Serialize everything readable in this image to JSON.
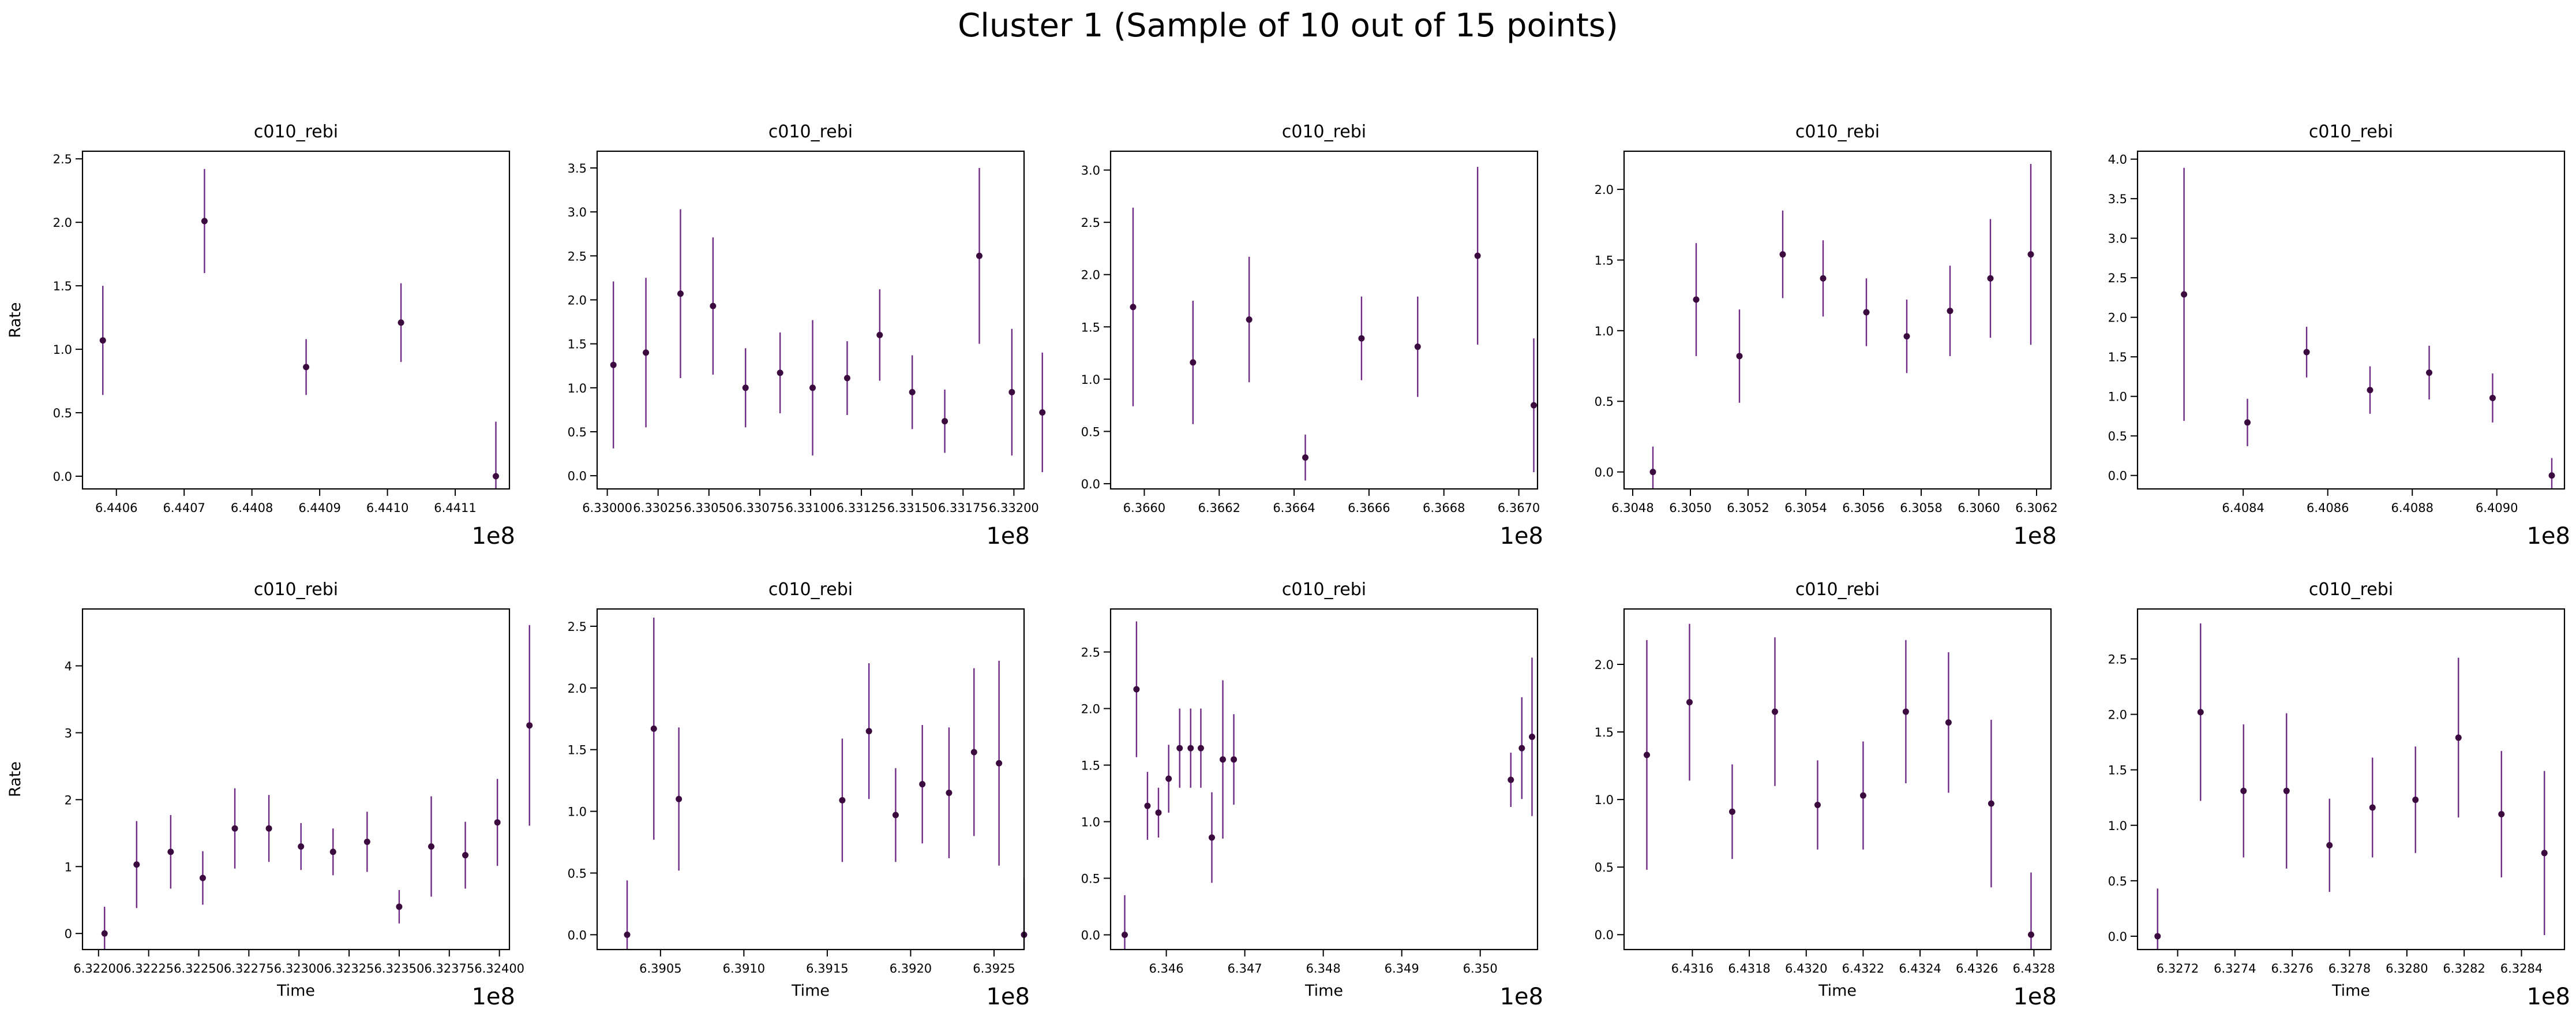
{
  "figure": {
    "title": "Cluster 1 (Sample of 10 out of 15 points)",
    "marker_color": "#3b0a3f",
    "errorbar_color": "#6f2a86"
  },
  "chart_data": [
    {
      "type": "scatter",
      "title": "c010_rebi",
      "xlabel": "",
      "ylabel": "Rate",
      "offset_label": "1e8",
      "xlim": [
        6.44055,
        6.44118
      ],
      "ylim": [
        -0.1,
        2.56
      ],
      "xticks": [
        6.4406,
        6.4407,
        6.4408,
        6.4409,
        6.441,
        6.4411
      ],
      "xtick_labels": [
        "6.4406",
        "6.4407",
        "6.4408",
        "6.4409",
        "6.4410",
        "6.4411"
      ],
      "yticks": [
        0,
        0.5,
        1,
        1.5,
        2,
        2.5
      ],
      "ytick_labels": [
        "0.0",
        "0.5",
        "1.0",
        "1.5",
        "2.0",
        "2.5"
      ],
      "x": [
        6.44058,
        6.44073,
        6.44088,
        6.44102,
        6.44116
      ],
      "y": [
        1.07,
        2.01,
        0.86,
        1.21,
        0.0
      ],
      "yerr": [
        0.43,
        0.41,
        0.22,
        0.31,
        0.43
      ]
    },
    {
      "type": "scatter",
      "title": "c010_rebi",
      "xlabel": "",
      "ylabel": "",
      "offset_label": "1e8",
      "xlim": [
        6.32995,
        6.33205
      ],
      "ylim": [
        -0.15,
        3.69
      ],
      "xticks": [
        6.33,
        6.33025,
        6.3305,
        6.33075,
        6.331,
        6.33125,
        6.3315,
        6.33175,
        6.332
      ],
      "xtick_labels": [
        "6.33000",
        "6.33025",
        "6.33050",
        "6.33075",
        "6.33100",
        "6.33125",
        "6.33150",
        "6.33175",
        "6.33200"
      ],
      "yticks": [
        0,
        0.5,
        1,
        1.5,
        2,
        2.5,
        3,
        3.5
      ],
      "ytick_labels": [
        "0.0",
        "0.5",
        "1.0",
        "1.5",
        "2.0",
        "2.5",
        "3.0",
        "3.5"
      ],
      "x": [
        6.33003,
        6.33019,
        6.33036,
        6.33052,
        6.33068,
        6.33085,
        6.33101,
        6.33118,
        6.33134,
        6.3315,
        6.33166,
        6.33183,
        6.33199,
        6.33214
      ],
      "y": [
        1.26,
        1.4,
        2.07,
        1.93,
        1.0,
        1.17,
        1.0,
        1.11,
        1.6,
        0.95,
        0.62,
        2.5,
        0.95,
        0.72
      ],
      "yerr": [
        0.95,
        0.85,
        0.96,
        0.78,
        0.45,
        0.46,
        0.77,
        0.42,
        0.52,
        0.42,
        0.36,
        1.0,
        0.72,
        0.68
      ]
    },
    {
      "type": "scatter",
      "title": "c010_rebi",
      "xlabel": "",
      "ylabel": "",
      "offset_label": "1e8",
      "xlim": [
        6.36591,
        6.36705
      ],
      "ylim": [
        -0.05,
        3.18
      ],
      "xticks": [
        6.366,
        6.3662,
        6.3664,
        6.3666,
        6.3668,
        6.367
      ],
      "xtick_labels": [
        "6.3660",
        "6.3662",
        "6.3664",
        "6.3666",
        "6.3668",
        "6.3670"
      ],
      "yticks": [
        0,
        0.5,
        1,
        1.5,
        2,
        2.5,
        3
      ],
      "ytick_labels": [
        "0.0",
        "0.5",
        "1.0",
        "1.5",
        "2.0",
        "2.5",
        "3.0"
      ],
      "x": [
        6.36597,
        6.36613,
        6.36628,
        6.36643,
        6.36658,
        6.36673,
        6.36689,
        6.36704
      ],
      "y": [
        1.69,
        1.16,
        1.57,
        0.25,
        1.39,
        1.31,
        2.18,
        0.75
      ],
      "yerr": [
        0.95,
        0.59,
        0.6,
        0.22,
        0.4,
        0.48,
        0.85,
        0.64
      ]
    },
    {
      "type": "scatter",
      "title": "c010_rebi",
      "xlabel": "",
      "ylabel": "",
      "offset_label": "1e8",
      "xlim": [
        6.30477,
        6.30625
      ],
      "ylim": [
        -0.12,
        2.27
      ],
      "xticks": [
        6.3048,
        6.305,
        6.3052,
        6.3054,
        6.3056,
        6.3058,
        6.306,
        6.3062
      ],
      "xtick_labels": [
        "6.3048",
        "6.3050",
        "6.3052",
        "6.3054",
        "6.3056",
        "6.3058",
        "6.3060",
        "6.3062"
      ],
      "yticks": [
        0,
        0.5,
        1,
        1.5,
        2
      ],
      "ytick_labels": [
        "0.0",
        "0.5",
        "1.0",
        "1.5",
        "2.0"
      ],
      "x": [
        6.30487,
        6.30502,
        6.30517,
        6.30532,
        6.30546,
        6.30561,
        6.30575,
        6.3059,
        6.30604,
        6.30618
      ],
      "y": [
        0.0,
        1.22,
        0.82,
        1.54,
        1.37,
        1.13,
        0.96,
        1.14,
        1.37,
        1.54
      ],
      "yerr": [
        0.18,
        0.4,
        0.33,
        0.31,
        0.27,
        0.24,
        0.26,
        0.32,
        0.42,
        0.64
      ]
    },
    {
      "type": "scatter",
      "title": "c010_rebi",
      "xlabel": "",
      "ylabel": "",
      "offset_label": "1e8",
      "xlim": [
        6.40815,
        6.40916
      ],
      "ylim": [
        -0.17,
        4.1
      ],
      "xticks": [
        6.4084,
        6.4086,
        6.4088,
        6.409
      ],
      "xtick_labels": [
        "6.4084",
        "6.4086",
        "6.4088",
        "6.4090"
      ],
      "yticks": [
        0,
        0.5,
        1,
        1.5,
        2,
        2.5,
        3,
        3.5,
        4
      ],
      "ytick_labels": [
        "0.0",
        "0.5",
        "1.0",
        "1.5",
        "2.0",
        "2.5",
        "3.0",
        "3.5",
        "4.0"
      ],
      "x": [
        6.40826,
        6.40841,
        6.40855,
        6.4087,
        6.40884,
        6.40899,
        6.40913
      ],
      "y": [
        2.29,
        0.67,
        1.56,
        1.08,
        1.3,
        0.98,
        0.0
      ],
      "yerr": [
        1.6,
        0.3,
        0.32,
        0.3,
        0.34,
        0.31,
        0.22
      ]
    },
    {
      "type": "scatter",
      "title": "c010_rebi",
      "xlabel": "Time",
      "ylabel": "Rate",
      "offset_label": "1e8",
      "xlim": [
        6.32192,
        6.32405
      ],
      "ylim": [
        -0.24,
        4.85
      ],
      "xticks": [
        6.322,
        6.32225,
        6.3225,
        6.32275,
        6.323,
        6.32325,
        6.3235,
        6.32375,
        6.324
      ],
      "xtick_labels": [
        "6.32200",
        "6.32225",
        "6.32250",
        "6.32275",
        "6.32300",
        "6.32325",
        "6.32350",
        "6.32375",
        "6.32400"
      ],
      "yticks": [
        0,
        1,
        2,
        3,
        4
      ],
      "ytick_labels": [
        "0",
        "1",
        "2",
        "3",
        "4"
      ],
      "x": [
        6.32203,
        6.32219,
        6.32236,
        6.32252,
        6.32268,
        6.32285,
        6.32301,
        6.32317,
        6.32334,
        6.3235,
        6.32366,
        6.32383,
        6.32399,
        6.32415
      ],
      "y": [
        0.0,
        1.03,
        1.22,
        0.83,
        1.57,
        1.57,
        1.3,
        1.22,
        1.37,
        0.4,
        1.3,
        1.17,
        1.66,
        3.11
      ],
      "yerr": [
        0.4,
        0.65,
        0.55,
        0.4,
        0.6,
        0.5,
        0.35,
        0.35,
        0.45,
        0.25,
        0.75,
        0.5,
        0.65,
        1.5
      ]
    },
    {
      "type": "scatter",
      "title": "c010_rebi",
      "xlabel": "Time",
      "ylabel": "",
      "offset_label": "1e8",
      "xlim": [
        6.39012,
        6.39268
      ],
      "ylim": [
        -0.12,
        2.64
      ],
      "xticks": [
        6.3905,
        6.391,
        6.3915,
        6.392,
        6.3925
      ],
      "xtick_labels": [
        "6.3905",
        "6.3910",
        "6.3915",
        "6.3920",
        "6.3925"
      ],
      "yticks": [
        0,
        0.5,
        1,
        1.5,
        2,
        2.5
      ],
      "ytick_labels": [
        "0.0",
        "0.5",
        "1.0",
        "1.5",
        "2.0",
        "2.5"
      ],
      "x": [
        6.3903,
        6.39046,
        6.39061,
        6.39159,
        6.39175,
        6.39191,
        6.39207,
        6.39223,
        6.39238,
        6.39253,
        6.39268
      ],
      "y": [
        0.0,
        1.67,
        1.1,
        1.09,
        1.65,
        0.97,
        1.22,
        1.15,
        1.48,
        1.39,
        0.0
      ],
      "yerr": [
        0.44,
        0.9,
        0.58,
        0.5,
        0.55,
        0.38,
        0.48,
        0.53,
        0.68,
        0.83,
        0.46
      ]
    },
    {
      "type": "scatter",
      "title": "c010_rebi",
      "xlabel": "Time",
      "ylabel": "",
      "offset_label": "1e8",
      "xlim": [
        6.34529,
        6.35073
      ],
      "ylim": [
        -0.13,
        2.88
      ],
      "xticks": [
        6.346,
        6.347,
        6.348,
        6.349,
        6.35
      ],
      "xtick_labels": [
        "6.346",
        "6.347",
        "6.348",
        "6.349",
        "6.350"
      ],
      "yticks": [
        0,
        0.5,
        1,
        1.5,
        2,
        2.5
      ],
      "ytick_labels": [
        "0.0",
        "0.5",
        "1.0",
        "1.5",
        "2.0",
        "2.5"
      ],
      "x": [
        6.34547,
        6.34562,
        6.34576,
        6.3459,
        6.34603,
        6.34617,
        6.34631,
        6.34644,
        6.34658,
        6.34672,
        6.34686,
        6.35039,
        6.35053,
        6.35066
      ],
      "y": [
        0.0,
        2.17,
        1.14,
        1.08,
        1.38,
        1.65,
        1.65,
        1.65,
        0.86,
        1.55,
        1.55,
        1.37,
        1.65,
        1.75
      ],
      "yerr": [
        0.35,
        0.6,
        0.3,
        0.22,
        0.3,
        0.35,
        0.35,
        0.35,
        0.4,
        0.7,
        0.4,
        0.24,
        0.45,
        0.7
      ]
    },
    {
      "type": "scatter",
      "title": "c010_rebi",
      "xlabel": "Time",
      "ylabel": "",
      "offset_label": "1e8",
      "xlim": [
        6.43136,
        6.43286
      ],
      "ylim": [
        -0.11,
        2.41
      ],
      "xticks": [
        6.4316,
        6.4318,
        6.432,
        6.4322,
        6.4324,
        6.4326,
        6.4328
      ],
      "xtick_labels": [
        "6.4316",
        "6.4318",
        "6.4320",
        "6.4322",
        "6.4324",
        "6.4326",
        "6.4328"
      ],
      "yticks": [
        0,
        0.5,
        1,
        1.5,
        2
      ],
      "ytick_labels": [
        "0.0",
        "0.5",
        "1.0",
        "1.5",
        "2.0"
      ],
      "x": [
        6.43144,
        6.43159,
        6.43174,
        6.43189,
        6.43204,
        6.4322,
        6.43235,
        6.4325,
        6.43265,
        6.43279
      ],
      "y": [
        1.33,
        1.72,
        0.91,
        1.65,
        0.96,
        1.03,
        1.65,
        1.57,
        0.97,
        0.0
      ],
      "yerr": [
        0.85,
        0.58,
        0.35,
        0.55,
        0.33,
        0.4,
        0.53,
        0.52,
        0.62,
        0.46
      ]
    },
    {
      "type": "scatter",
      "title": "c010_rebi",
      "xlabel": "Time",
      "ylabel": "",
      "offset_label": "1e8",
      "xlim": [
        6.32706,
        6.32855
      ],
      "ylim": [
        -0.12,
        2.95
      ],
      "xticks": [
        6.3272,
        6.3274,
        6.3276,
        6.3278,
        6.328,
        6.3282,
        6.3284
      ],
      "xtick_labels": [
        "6.3272",
        "6.3274",
        "6.3276",
        "6.3278",
        "6.3280",
        "6.3282",
        "6.3284"
      ],
      "yticks": [
        0,
        0.5,
        1,
        1.5,
        2,
        2.5
      ],
      "ytick_labels": [
        "0.0",
        "0.5",
        "1.0",
        "1.5",
        "2.0",
        "2.5"
      ],
      "x": [
        6.32713,
        6.32728,
        6.32743,
        6.32758,
        6.32773,
        6.32788,
        6.32803,
        6.32818,
        6.32833,
        6.32848
      ],
      "y": [
        0.0,
        2.02,
        1.31,
        1.31,
        0.82,
        1.16,
        1.23,
        1.79,
        1.1,
        0.75
      ],
      "yerr": [
        0.43,
        0.8,
        0.6,
        0.7,
        0.42,
        0.45,
        0.48,
        0.72,
        0.57,
        0.74
      ]
    }
  ]
}
